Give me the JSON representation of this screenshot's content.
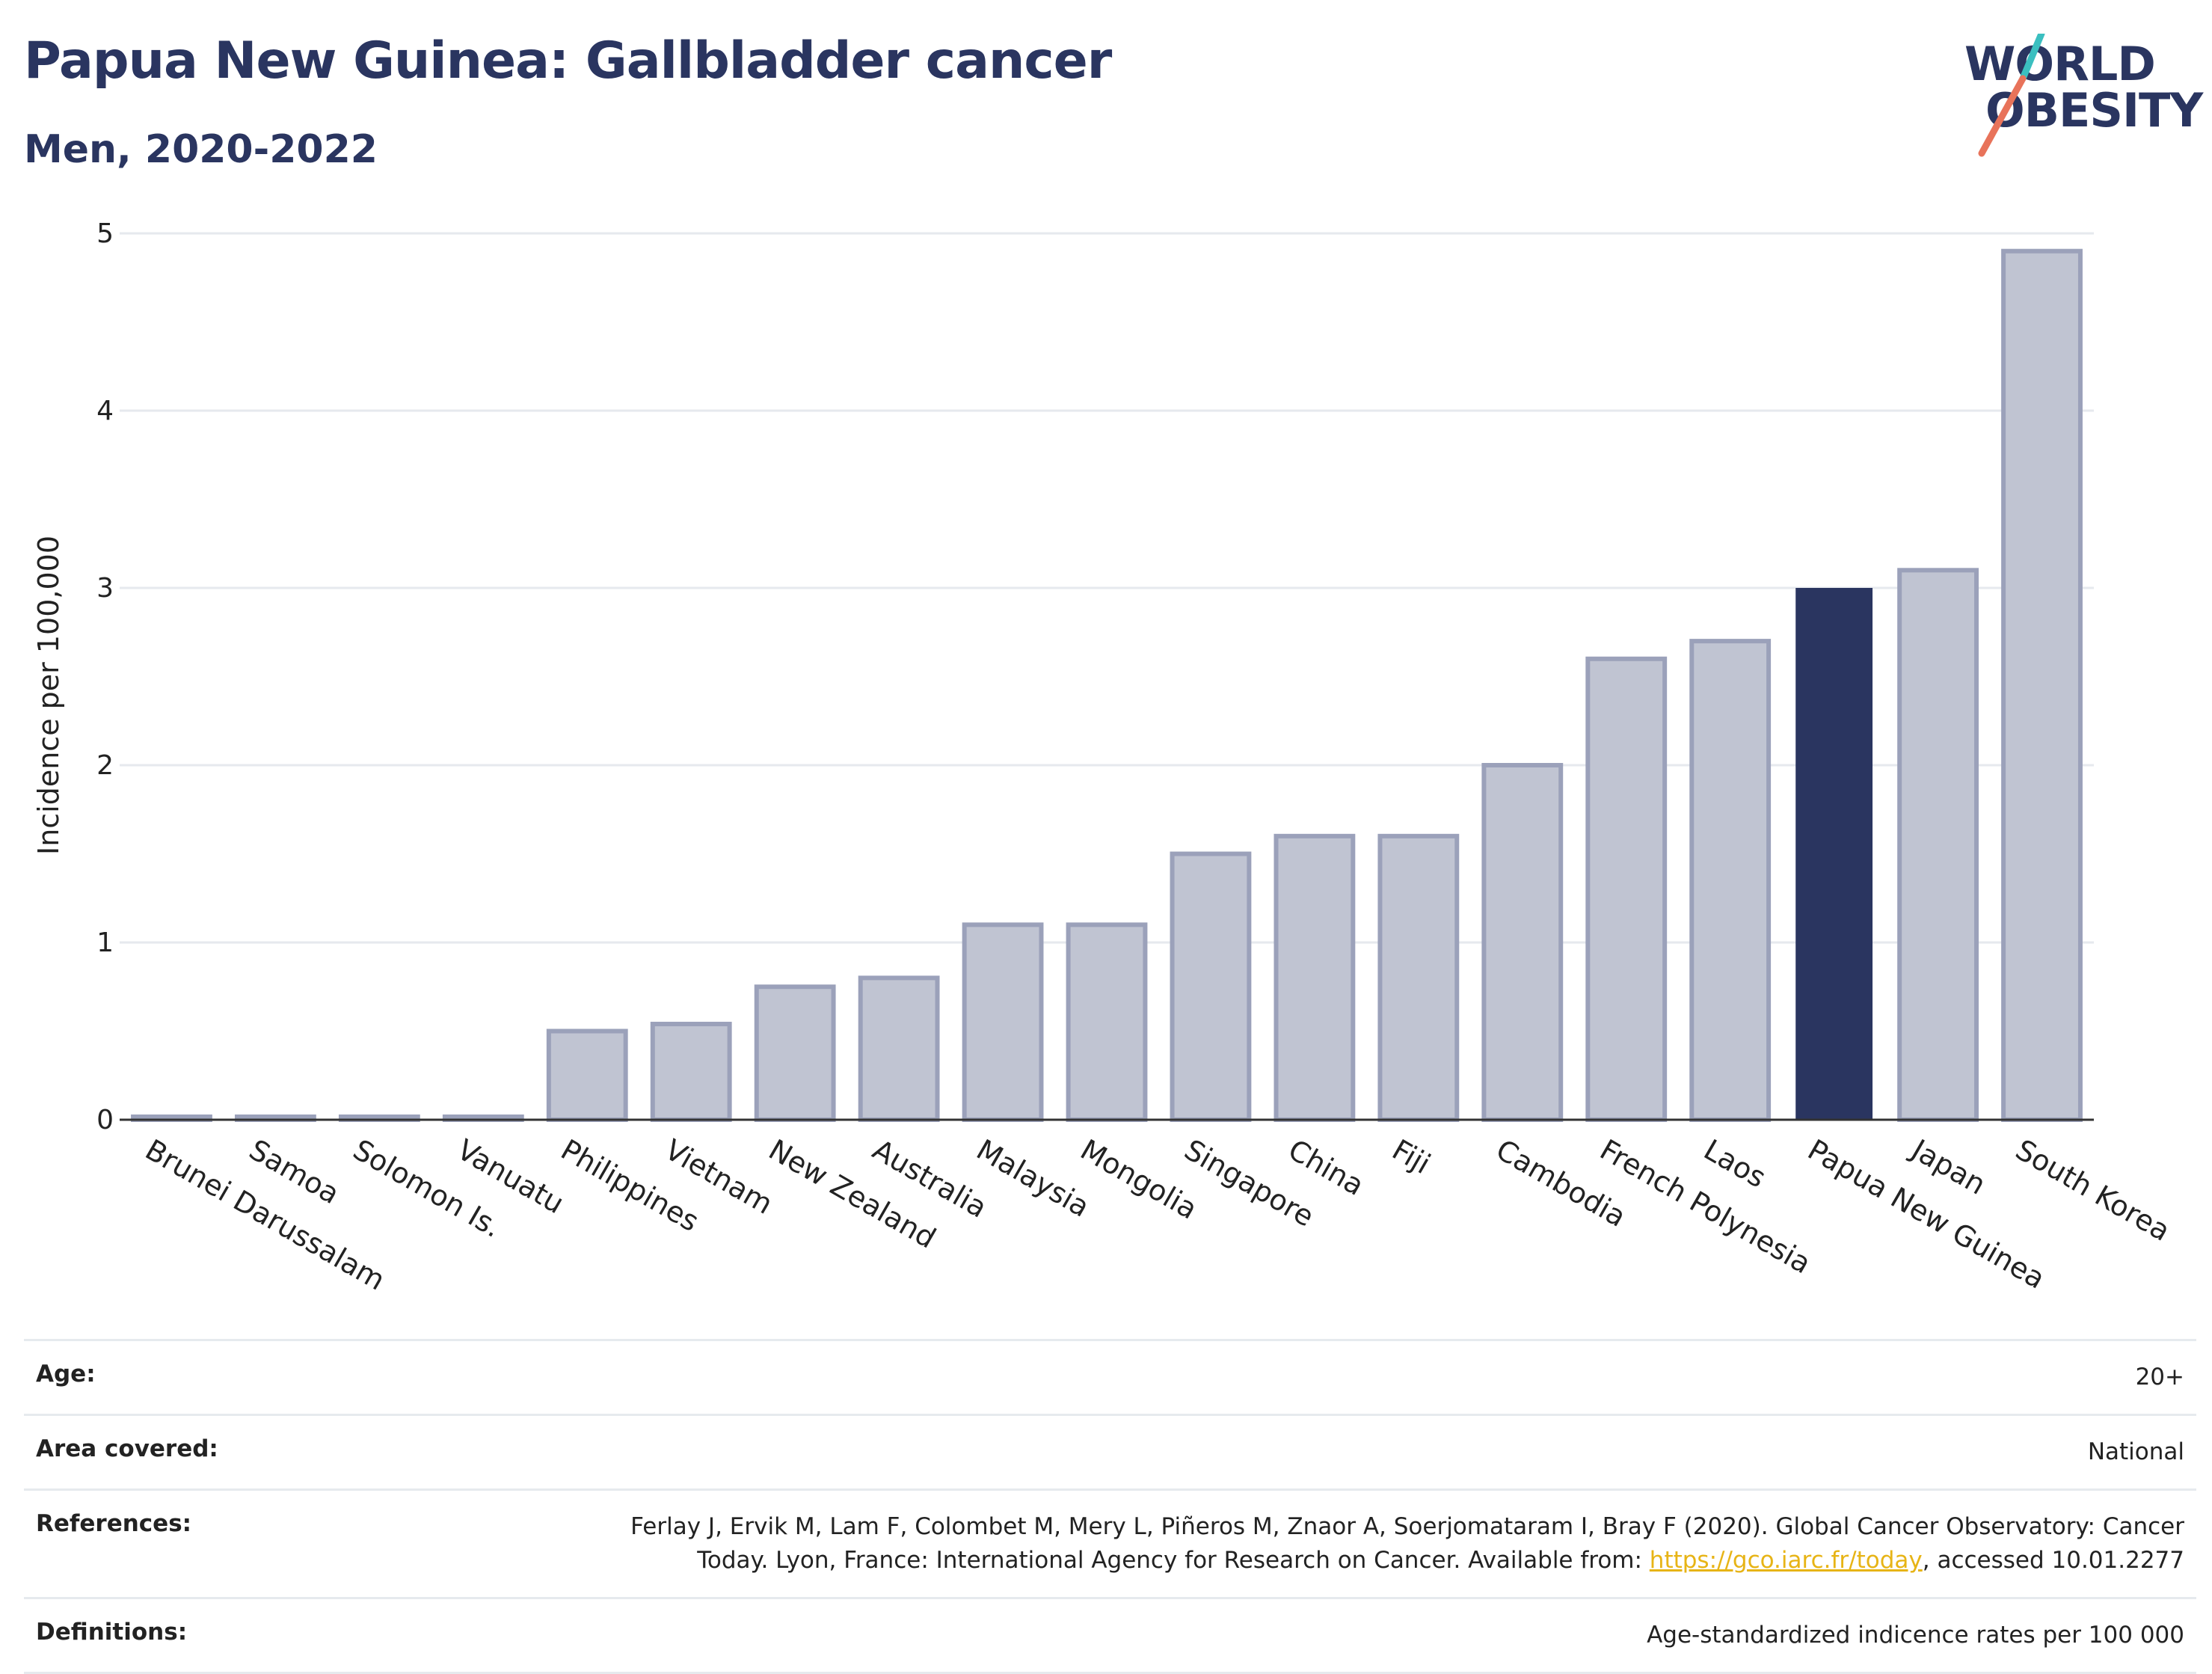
{
  "header": {
    "title": "Papua New Guinea: Gallbladder cancer",
    "subtitle": "Men, 2020-2022"
  },
  "logo": {
    "line1": "WORLD",
    "line2": "OBESITY"
  },
  "colors": {
    "highlight": "#2a3560",
    "bar": "#c0c4d2",
    "bar_edge": "#9ba1ba",
    "accent_teal": "#3bbfc0",
    "accent_coral": "#e8735a"
  },
  "chart_data": {
    "type": "bar",
    "categories": [
      "Brunei Darussalam",
      "Samoa",
      "Solomon Is.",
      "Vanuatu",
      "Philippines",
      "Vietnam",
      "New Zealand",
      "Australia",
      "Malaysia",
      "Mongolia",
      "Singapore",
      "China",
      "Fiji",
      "Cambodia",
      "French Polynesia",
      "Laos",
      "Papua New Guinea",
      "Japan",
      "South Korea"
    ],
    "values": [
      0,
      0,
      0,
      0,
      0.5,
      0.54,
      0.75,
      0.8,
      1.1,
      1.1,
      1.5,
      1.6,
      1.6,
      2.0,
      2.6,
      2.7,
      3.0,
      3.1,
      4.9
    ],
    "highlight": "Papua New Guinea",
    "ylabel": "Incidence per 100,000",
    "ylim": [
      0,
      5
    ],
    "yticks": [
      0,
      1,
      2,
      3,
      4,
      5
    ],
    "grid": true
  },
  "footer": {
    "rows": [
      {
        "label": "Age:",
        "value": "20+"
      },
      {
        "label": "Area covered:",
        "value": "National"
      },
      {
        "label": "References:",
        "value": "Ferlay J, Ervik M, Lam F, Colombet M, Mery L, Piñeros M, Znaor A, Soerjomataram I, Bray F (2020). Global Cancer Observatory: Cancer",
        "value2": "Today. Lyon, France: International Agency for Research on Cancer. Available from: ",
        "link": "https://gco.iarc.fr/today",
        "value3": ", accessed 10.01.2277"
      },
      {
        "label": "Definitions:",
        "value": "Age-standardized indicence rates per 100 000"
      }
    ]
  }
}
